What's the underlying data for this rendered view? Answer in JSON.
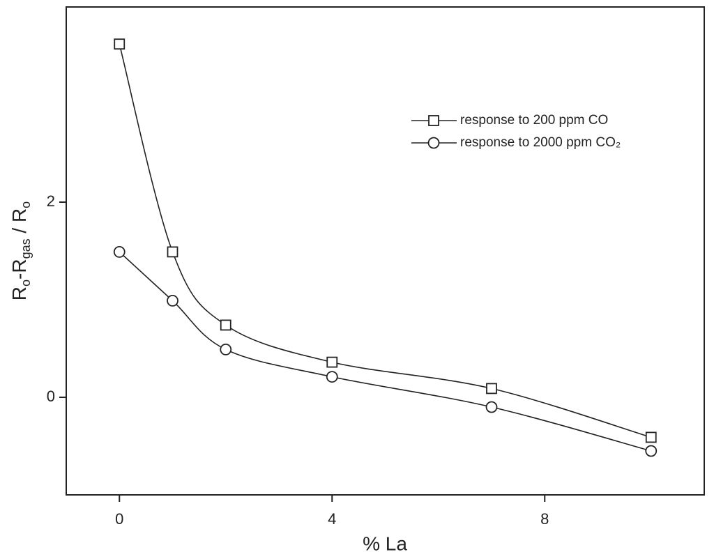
{
  "chart_data": {
    "type": "line",
    "xlabel": "% La",
    "ylabel": [
      "R",
      "o",
      "-R",
      "gas",
      " / R",
      "o"
    ],
    "xlim": [
      -1,
      11
    ],
    "xticks": [
      0,
      4,
      8
    ],
    "ylim": [
      -1,
      4
    ],
    "yticks": [
      0,
      2
    ],
    "legend": "upper right",
    "x": [
      0,
      1,
      2,
      4,
      7,
      10
    ],
    "series": [
      {
        "name": "response to 200 ppm CO",
        "color": "#222222",
        "marker": "square",
        "values": [
          3.62,
          1.49,
          0.74,
          0.36,
          0.09,
          -0.41
        ]
      },
      {
        "name": "response to 2000 ppm CO₂",
        "color": "#222222",
        "marker": "circle",
        "values": [
          1.49,
          0.99,
          0.49,
          0.21,
          -0.1,
          -0.55
        ]
      }
    ]
  }
}
